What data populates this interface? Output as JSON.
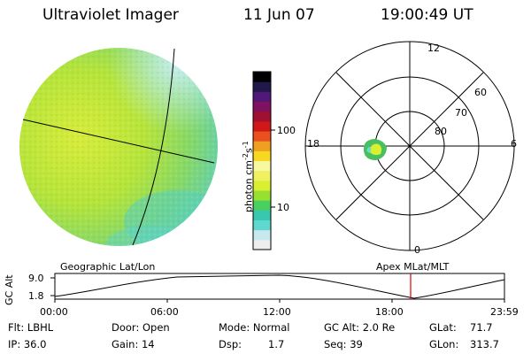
{
  "header": {
    "instrument": "Ultraviolet Imager",
    "date": "11 Jun 07",
    "time": "19:00:49 UT"
  },
  "colorbar": {
    "unit_label": "photon cm",
    "unit_sup1": "-2",
    "unit_mid": "s",
    "unit_sup2": "-1",
    "ticks": [
      "100",
      "10"
    ],
    "colors": [
      "#eeeeee",
      "#c8e8f0",
      "#5fd8d0",
      "#38c8b0",
      "#48d060",
      "#98e030",
      "#d8f030",
      "#f0f060",
      "#f8f8a0",
      "#f8d820",
      "#f0a020",
      "#e85020",
      "#d01818",
      "#a01030",
      "#801060",
      "#501878",
      "#201848",
      "#000000"
    ]
  },
  "polar_plot": {
    "mlt_labels": {
      "top": "12",
      "bottom": "0",
      "left": "18",
      "right": "6"
    },
    "lat_labels": [
      "60",
      "70",
      "80"
    ]
  },
  "timeline": {
    "axis_label": "GC Alt",
    "y_ticks": [
      "9.0",
      "1.8"
    ],
    "left_title": "Geographic Lat/Lon",
    "right_title": "Apex MLat/MLT",
    "x_ticks": [
      "00:00",
      "06:00",
      "12:00",
      "18:00",
      "23:59"
    ],
    "marker_color": "#e00000"
  },
  "info": {
    "filter": "Flt: LBHL",
    "ip": "IP: 36.0",
    "door": "Door: Open",
    "gain": "Gain: 14",
    "mode": "Mode: Normal",
    "dsp_label": "Dsp:",
    "dsp_value": "1.7",
    "gc_alt": "GC Alt: 2.0 Re",
    "seq": "Seq: 39",
    "glat_label": "GLat:",
    "glat_value": "71.7",
    "glon_label": "GLon:",
    "glon_value": "313.7"
  }
}
